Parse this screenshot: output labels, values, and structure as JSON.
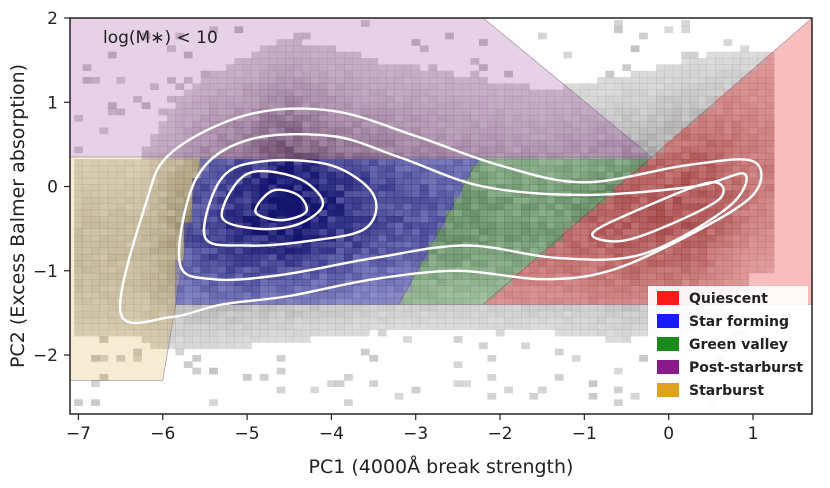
{
  "chart_data": {
    "type": "heatmap",
    "title": "",
    "xlabel": "PC1 (4000Å break strength)",
    "ylabel": "PC2 (Excess Balmer absorption)",
    "xlim": [
      -7.1,
      1.7
    ],
    "ylim": [
      -2.7,
      2.0
    ],
    "xticks": [
      -7,
      -6,
      -5,
      -4,
      -3,
      -2,
      -1,
      0,
      1
    ],
    "xtick_labels": [
      "−7",
      "−6",
      "−5",
      "−4",
      "−3",
      "−2",
      "−1",
      "0",
      "1"
    ],
    "yticks": [
      2,
      1,
      0,
      -1,
      -2
    ],
    "ytick_labels": [
      "2",
      "1",
      "0",
      "−1",
      "−2"
    ],
    "annotation": "log(M∗) < 10",
    "legend": {
      "location": "lower-right",
      "entries": [
        {
          "label": "Quiescent",
          "color": "#ff1a1a"
        },
        {
          "label": "Star forming",
          "color": "#1a1aff"
        },
        {
          "label": "Green valley",
          "color": "#1a8a1a"
        },
        {
          "label": "Post-starburst",
          "color": "#8a1a8a"
        },
        {
          "label": "Starburst",
          "color": "#e0a020"
        }
      ]
    },
    "regions": [
      {
        "name": "Quiescent",
        "color": "#f7b2b2",
        "polygon": [
          [
            -2.2,
            -1.4
          ],
          [
            1.7,
            -1.4
          ],
          [
            1.7,
            2.0
          ],
          [
            -0.2,
            0.35
          ]
        ]
      },
      {
        "name": "Star forming",
        "color": "#b6b6ef",
        "polygon": [
          [
            -5.55,
            0.35
          ],
          [
            -2.25,
            0.35
          ],
          [
            -3.2,
            -1.4
          ],
          [
            -5.9,
            -1.4
          ]
        ]
      },
      {
        "name": "Green valley",
        "color": "#c5e5c5",
        "polygon": [
          [
            -2.25,
            0.35
          ],
          [
            -0.2,
            0.35
          ],
          [
            -2.2,
            -1.4
          ],
          [
            -3.2,
            -1.4
          ]
        ]
      },
      {
        "name": "Post-starburst",
        "color": "#e2c9e2",
        "polygon": [
          [
            -7.1,
            2.0
          ],
          [
            -2.2,
            2.0
          ],
          [
            -0.2,
            0.35
          ],
          [
            -7.1,
            0.35
          ]
        ]
      },
      {
        "name": "Starburst",
        "color": "#f5e7cb",
        "polygon": [
          [
            -7.1,
            0.35
          ],
          [
            -5.55,
            0.35
          ],
          [
            -6.0,
            -2.3
          ],
          [
            -7.1,
            -2.3
          ]
        ]
      }
    ],
    "density_ridge": [
      {
        "x": -6.3,
        "y": -0.9,
        "w": 0.2
      },
      {
        "x": -5.7,
        "y": -0.6,
        "w": 0.55
      },
      {
        "x": -4.6,
        "y": -0.3,
        "w": 1.0
      },
      {
        "x": -3.5,
        "y": -0.35,
        "w": 0.6
      },
      {
        "x": -2.5,
        "y": -0.4,
        "w": 0.45
      },
      {
        "x": -1.5,
        "y": -0.5,
        "w": 0.4
      },
      {
        "x": -0.6,
        "y": -0.5,
        "w": 0.55
      },
      {
        "x": 0.3,
        "y": -0.3,
        "w": 0.6
      },
      {
        "x": 1.0,
        "y": 0.1,
        "w": 0.3
      }
    ],
    "contours": [
      [
        [
          -6.5,
          -1.5
        ],
        [
          -6.2,
          -0.2
        ],
        [
          -5.9,
          0.4
        ],
        [
          -5.0,
          0.85
        ],
        [
          -4.0,
          0.9
        ],
        [
          -3.0,
          0.6
        ],
        [
          -2.0,
          0.25
        ],
        [
          -1.0,
          0.05
        ],
        [
          0.2,
          0.25
        ],
        [
          1.0,
          0.3
        ],
        [
          1.0,
          -0.1
        ],
        [
          0.2,
          -0.6
        ],
        [
          -0.7,
          -1.0
        ],
        [
          -1.5,
          -1.1
        ],
        [
          -2.5,
          -1.0
        ],
        [
          -3.5,
          -1.1
        ],
        [
          -4.5,
          -1.3
        ],
        [
          -5.3,
          -1.4
        ],
        [
          -5.9,
          -1.55
        ]
      ],
      [
        [
          -5.8,
          -0.9
        ],
        [
          -5.6,
          0.1
        ],
        [
          -5.0,
          0.55
        ],
        [
          -4.0,
          0.6
        ],
        [
          -3.2,
          0.35
        ],
        [
          -2.2,
          0.0
        ],
        [
          -1.0,
          -0.1
        ],
        [
          0.3,
          0.0
        ],
        [
          0.9,
          0.15
        ],
        [
          0.7,
          -0.25
        ],
        [
          -0.3,
          -0.8
        ],
        [
          -1.3,
          -0.85
        ],
        [
          -2.4,
          -0.7
        ],
        [
          -3.5,
          -0.85
        ],
        [
          -4.6,
          -1.05
        ],
        [
          -5.4,
          -1.1
        ]
      ],
      [
        [
          -5.5,
          -0.6
        ],
        [
          -5.3,
          0.1
        ],
        [
          -4.8,
          0.3
        ],
        [
          -4.0,
          0.25
        ],
        [
          -3.5,
          -0.1
        ],
        [
          -3.6,
          -0.5
        ],
        [
          -4.3,
          -0.65
        ],
        [
          -5.0,
          -0.7
        ]
      ],
      [
        [
          -0.9,
          -0.55
        ],
        [
          -0.3,
          -0.25
        ],
        [
          0.5,
          0.05
        ],
        [
          0.6,
          -0.15
        ],
        [
          -0.1,
          -0.5
        ],
        [
          -0.6,
          -0.65
        ]
      ],
      [
        [
          -5.3,
          -0.35
        ],
        [
          -5.0,
          0.15
        ],
        [
          -4.4,
          0.1
        ],
        [
          -4.1,
          -0.2
        ],
        [
          -4.4,
          -0.45
        ],
        [
          -4.9,
          -0.5
        ]
      ],
      [
        [
          -4.9,
          -0.3
        ],
        [
          -4.7,
          -0.05
        ],
        [
          -4.4,
          -0.1
        ],
        [
          -4.3,
          -0.3
        ],
        [
          -4.6,
          -0.4
        ]
      ]
    ]
  }
}
